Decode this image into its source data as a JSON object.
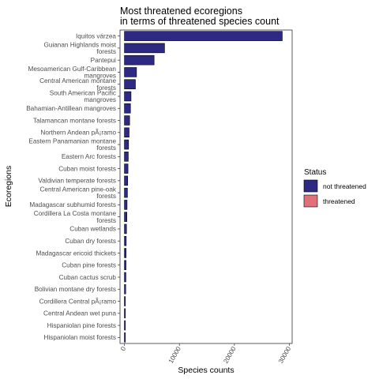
{
  "chart_data": {
    "type": "bar",
    "orientation": "horizontal",
    "title": [
      "Most threatened ecoregions",
      "in terms of threatened species count"
    ],
    "xlabel": "Species counts",
    "ylabel": "Ecoregions",
    "xlim": [
      -800,
      30500
    ],
    "x_ticks": [
      0,
      10000,
      20000,
      30000
    ],
    "x_tick_labels": [
      "0",
      "10000",
      "20000",
      "30000"
    ],
    "grid": false,
    "legend": {
      "title": "Status",
      "position": "right",
      "entries": [
        {
          "label": "not threatened",
          "color": "#2e2a83"
        },
        {
          "label": "threatened",
          "color": "#e0707a"
        }
      ]
    },
    "categories": [
      "Iquitos várzea",
      "Guianan Highlands moist\nforests",
      "Pantepui",
      "Mesoamerican Gulf-Caribbean\nmangroves",
      "Central American montane\nforests",
      "South American Pacific\nmangroves",
      "Bahamian-Antillean mangroves",
      "Talamancan montane forests",
      "Northern Andean pÃ¡ramo",
      "Eastern Panamanian montane\nforests",
      "Eastern Arc forests",
      "Cuban moist forests",
      "Valdivian temperate forests",
      "Central American pine-oak\nforests",
      "Madagascar subhumid forests",
      "Cordillera La Costa montane\nforests",
      "Cuban wetlands",
      "Cuban dry forests",
      "Madagascar ericoid thickets",
      "Cuban pine forests",
      "Cuban cactus scrub",
      "Bolivian montane dry forests",
      "Cordillera Central pÃ¡ramo",
      "Central Andean wet puna",
      "Hispaniolan pine forests",
      "Hispaniolan moist forests"
    ],
    "series": [
      {
        "name": "not threatened",
        "color": "#2e2a83",
        "values": [
          28700,
          7300,
          5400,
          2200,
          2000,
          1200,
          1100,
          950,
          850,
          750,
          700,
          650,
          600,
          550,
          480,
          450,
          380,
          330,
          310,
          290,
          270,
          240,
          150,
          120,
          100,
          80
        ]
      },
      {
        "name": "threatened",
        "color": "#e0707a",
        "values": [
          0,
          0,
          0,
          0,
          0,
          0,
          0,
          0,
          0,
          0,
          0,
          0,
          0,
          0,
          0,
          0,
          0,
          0,
          0,
          0,
          0,
          0,
          0,
          0,
          0,
          0
        ]
      }
    ]
  }
}
